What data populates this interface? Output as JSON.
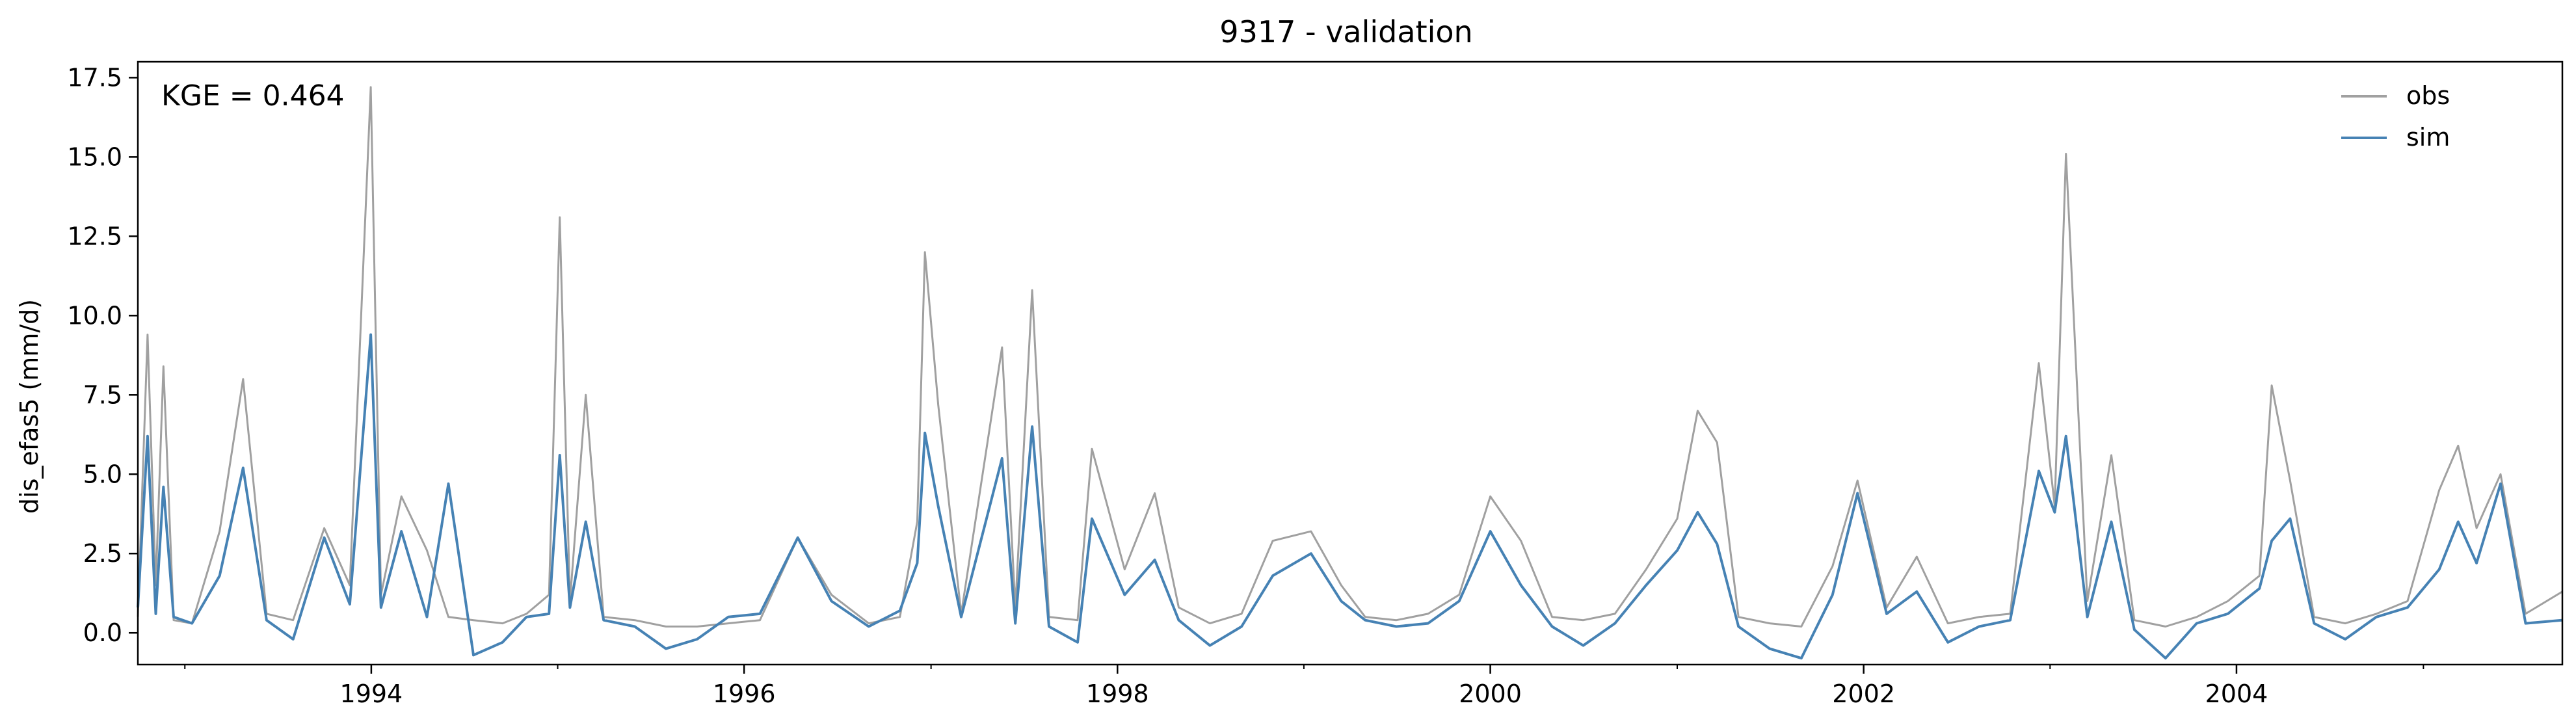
{
  "chart_data": {
    "type": "line",
    "title": "9317 - validation",
    "xlabel": "",
    "ylabel": "dis_efas5 (mm/d)",
    "annotation": "KGE = 0.464",
    "xlim": [
      "1992-10-01",
      "2005-09-30"
    ],
    "ylim": [
      -1.0,
      18.0
    ],
    "x_ticks": [
      {
        "date": "1994-01-01",
        "label": "1994"
      },
      {
        "date": "1996-01-01",
        "label": "1996"
      },
      {
        "date": "1998-01-01",
        "label": "1998"
      },
      {
        "date": "2000-01-01",
        "label": "2000"
      },
      {
        "date": "2002-01-01",
        "label": "2002"
      },
      {
        "date": "2004-01-01",
        "label": "2004"
      }
    ],
    "y_ticks": [
      {
        "value": 0.0,
        "label": "0.0"
      },
      {
        "value": 2.5,
        "label": "2.5"
      },
      {
        "value": 5.0,
        "label": "5.0"
      },
      {
        "value": 7.5,
        "label": "7.5"
      },
      {
        "value": 10.0,
        "label": "10.0"
      },
      {
        "value": 12.5,
        "label": "12.5"
      },
      {
        "value": 15.0,
        "label": "15.0"
      },
      {
        "value": 17.5,
        "label": "17.5"
      }
    ],
    "legend": {
      "position": "top-right",
      "entries": [
        "obs",
        "sim"
      ]
    },
    "grid": false,
    "series": [
      {
        "name": "obs",
        "color": "#a0a0a0",
        "x": [
          "1992-10-01",
          "1992-10-20",
          "1992-11-05",
          "1992-11-20",
          "1992-12-10",
          "1993-01-15",
          "1993-03-10",
          "1993-04-25",
          "1993-06-10",
          "1993-08-01",
          "1993-10-01",
          "1993-11-20",
          "1993-12-31",
          "1994-01-20",
          "1994-03-01",
          "1994-04-20",
          "1994-06-01",
          "1994-07-20",
          "1994-09-15",
          "1994-11-01",
          "1994-12-15",
          "1995-01-05",
          "1995-01-25",
          "1995-02-25",
          "1995-04-01",
          "1995-06-01",
          "1995-08-01",
          "1995-10-01",
          "1995-12-01",
          "1996-02-01",
          "1996-04-15",
          "1996-06-20",
          "1996-09-01",
          "1996-11-01",
          "1996-12-05",
          "1996-12-20",
          "1997-01-15",
          "1997-03-01",
          "1997-05-20",
          "1997-06-15",
          "1997-07-18",
          "1997-08-20",
          "1997-10-15",
          "1997-11-12",
          "1998-01-15",
          "1998-03-15",
          "1998-05-01",
          "1998-07-01",
          "1998-09-01",
          "1998-11-01",
          "1999-01-15",
          "1999-03-15",
          "1999-05-01",
          "1999-07-01",
          "1999-09-01",
          "1999-11-01",
          "2000-01-01",
          "2000-03-01",
          "2000-05-01",
          "2000-07-01",
          "2000-09-01",
          "2000-11-01",
          "2001-01-01",
          "2001-02-10",
          "2001-03-20",
          "2001-05-01",
          "2001-07-01",
          "2001-09-01",
          "2001-11-01",
          "2001-12-20",
          "2002-02-15",
          "2002-04-15",
          "2002-06-15",
          "2002-08-15",
          "2002-10-15",
          "2002-12-10",
          "2003-01-10",
          "2003-02-01",
          "2003-03-15",
          "2003-05-01",
          "2003-06-15",
          "2003-08-15",
          "2003-10-15",
          "2003-12-15",
          "2004-02-15",
          "2004-03-10",
          "2004-04-15",
          "2004-06-01",
          "2004-08-01",
          "2004-10-01",
          "2004-12-01",
          "2005-02-01",
          "2005-03-10",
          "2005-04-15",
          "2005-06-01",
          "2005-07-20",
          "2005-09-30"
        ],
        "y": [
          0.5,
          9.4,
          1.5,
          8.4,
          0.4,
          0.3,
          3.2,
          8.0,
          0.6,
          0.4,
          3.3,
          1.5,
          17.2,
          1.2,
          4.3,
          2.6,
          0.5,
          0.4,
          0.3,
          0.6,
          1.2,
          13.1,
          1.0,
          7.5,
          0.5,
          0.4,
          0.2,
          0.2,
          0.3,
          0.4,
          3.0,
          1.2,
          0.3,
          0.5,
          3.5,
          12.0,
          7.2,
          0.6,
          9.0,
          0.8,
          10.8,
          0.5,
          0.4,
          5.8,
          2.0,
          4.4,
          0.8,
          0.3,
          0.6,
          2.9,
          3.2,
          1.5,
          0.5,
          0.4,
          0.6,
          1.2,
          4.3,
          2.9,
          0.5,
          0.4,
          0.6,
          2.0,
          3.6,
          7.0,
          6.0,
          0.5,
          0.3,
          0.2,
          2.1,
          4.8,
          0.8,
          2.4,
          0.3,
          0.5,
          0.6,
          8.5,
          4.0,
          15.1,
          1.0,
          5.6,
          0.4,
          0.2,
          0.5,
          1.0,
          1.8,
          7.8,
          4.8,
          0.5,
          0.3,
          0.6,
          1.0,
          4.5,
          5.9,
          3.3,
          5.0,
          0.6,
          1.3
        ]
      },
      {
        "name": "sim",
        "color": "#4682b4",
        "x": [
          "1992-10-01",
          "1992-10-20",
          "1992-11-05",
          "1992-11-20",
          "1992-12-10",
          "1993-01-15",
          "1993-03-10",
          "1993-04-25",
          "1993-06-10",
          "1993-08-01",
          "1993-10-01",
          "1993-11-20",
          "1993-12-31",
          "1994-01-20",
          "1994-03-01",
          "1994-04-20",
          "1994-06-01",
          "1994-07-20",
          "1994-09-15",
          "1994-11-01",
          "1994-12-15",
          "1995-01-05",
          "1995-01-25",
          "1995-02-25",
          "1995-04-01",
          "1995-06-01",
          "1995-08-01",
          "1995-10-01",
          "1995-12-01",
          "1996-02-01",
          "1996-04-15",
          "1996-06-20",
          "1996-09-01",
          "1996-11-01",
          "1996-12-05",
          "1996-12-20",
          "1997-01-15",
          "1997-03-01",
          "1997-05-20",
          "1997-06-15",
          "1997-07-18",
          "1997-08-20",
          "1997-10-15",
          "1997-11-12",
          "1998-01-15",
          "1998-03-15",
          "1998-05-01",
          "1998-07-01",
          "1998-09-01",
          "1998-11-01",
          "1999-01-15",
          "1999-03-15",
          "1999-05-01",
          "1999-07-01",
          "1999-09-01",
          "1999-11-01",
          "2000-01-01",
          "2000-03-01",
          "2000-05-01",
          "2000-07-01",
          "2000-09-01",
          "2000-11-01",
          "2001-01-01",
          "2001-02-10",
          "2001-03-20",
          "2001-05-01",
          "2001-07-01",
          "2001-09-01",
          "2001-11-01",
          "2001-12-20",
          "2002-02-15",
          "2002-04-15",
          "2002-06-15",
          "2002-08-15",
          "2002-10-15",
          "2002-12-10",
          "2003-01-10",
          "2003-02-01",
          "2003-03-15",
          "2003-05-01",
          "2003-06-15",
          "2003-08-15",
          "2003-10-15",
          "2003-12-15",
          "2004-02-15",
          "2004-03-10",
          "2004-04-15",
          "2004-06-01",
          "2004-08-01",
          "2004-10-01",
          "2004-12-01",
          "2005-02-01",
          "2005-03-10",
          "2005-04-15",
          "2005-06-01",
          "2005-07-20",
          "2005-09-30"
        ],
        "y": [
          0.8,
          6.2,
          0.6,
          4.6,
          0.5,
          0.3,
          1.8,
          5.2,
          0.4,
          -0.2,
          3.0,
          0.9,
          9.4,
          0.8,
          3.2,
          0.5,
          4.7,
          -0.7,
          -0.3,
          0.5,
          0.6,
          5.6,
          0.8,
          3.5,
          0.4,
          0.2,
          -0.5,
          -0.2,
          0.5,
          0.6,
          3.0,
          1.0,
          0.2,
          0.7,
          2.2,
          6.3,
          4.0,
          0.5,
          5.5,
          0.3,
          6.5,
          0.2,
          -0.3,
          3.6,
          1.2,
          2.3,
          0.4,
          -0.4,
          0.2,
          1.8,
          2.5,
          1.0,
          0.4,
          0.2,
          0.3,
          1.0,
          3.2,
          1.5,
          0.2,
          -0.4,
          0.3,
          1.5,
          2.6,
          3.8,
          2.8,
          0.2,
          -0.5,
          -0.8,
          1.2,
          4.4,
          0.6,
          1.3,
          -0.3,
          0.2,
          0.4,
          5.1,
          3.8,
          6.2,
          0.5,
          3.5,
          0.1,
          -0.8,
          0.3,
          0.6,
          1.4,
          2.9,
          3.6,
          0.3,
          -0.2,
          0.5,
          0.8,
          2.0,
          3.5,
          2.2,
          4.7,
          0.3,
          0.4
        ]
      }
    ]
  }
}
